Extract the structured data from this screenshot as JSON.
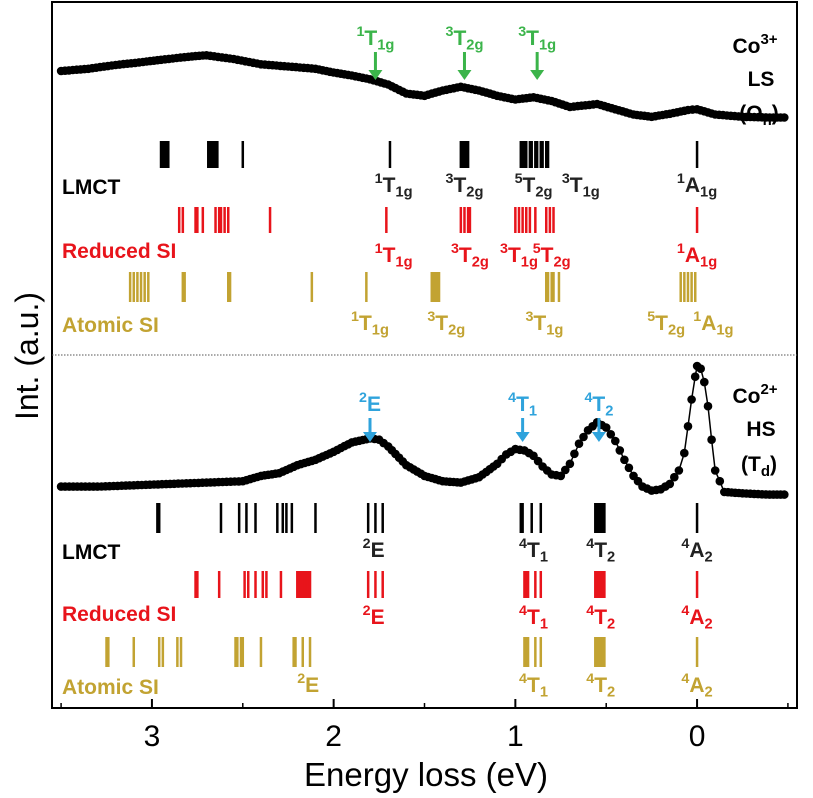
{
  "chart_data": {
    "type": "scatter",
    "xlabel": "Energy loss (eV)",
    "ylabel": "Int. (a.u.)",
    "xlim": [
      3.55,
      -0.55
    ],
    "x_ticks": [
      3,
      2,
      1,
      0
    ],
    "x_tick_labels": [
      "3",
      "2",
      "1",
      "0"
    ],
    "colors": {
      "LMCT": "#000000",
      "Reduced SI": "#e8141b",
      "Atomic SI": "#c2a332",
      "arrow_top": "#3bb44a",
      "arrow_bottom": "#2fa3dc",
      "spectrum": "#000000"
    },
    "panels": [
      {
        "id": "top",
        "label_lines": [
          "Co3+",
          "LS",
          "(Oh)"
        ],
        "label_parts": {
          "ion": "Co",
          "charge": "3+",
          "spin": "LS",
          "symmetry_open": "(O",
          "symmetry_sub": "h",
          "symmetry_close": ")"
        },
        "spectrum": {
          "x": [
            3.5,
            3.35,
            3.2,
            3.05,
            2.95,
            2.8,
            2.7,
            2.55,
            2.4,
            2.25,
            2.1,
            2.0,
            1.9,
            1.8,
            1.7,
            1.6,
            1.5,
            1.4,
            1.3,
            1.2,
            1.1,
            1.0,
            0.9,
            0.8,
            0.7,
            0.55,
            0.45,
            0.35,
            0.25,
            0.15,
            0.05,
            0.0,
            -0.1,
            -0.25,
            -0.4,
            -0.5
          ],
          "y": [
            0.88,
            0.91,
            0.96,
            1.0,
            1.03,
            1.07,
            1.09,
            1.04,
            0.97,
            0.94,
            0.91,
            0.86,
            0.82,
            0.77,
            0.7,
            0.58,
            0.55,
            0.62,
            0.67,
            0.62,
            0.55,
            0.5,
            0.53,
            0.48,
            0.4,
            0.44,
            0.37,
            0.3,
            0.27,
            0.31,
            0.36,
            0.37,
            0.3,
            0.27,
            0.26,
            0.26
          ]
        },
        "arrows": [
          {
            "x": 1.77,
            "label": "1T1g"
          },
          {
            "x": 1.28,
            "label": "3T2g"
          },
          {
            "x": 0.88,
            "label": "3T1g"
          }
        ],
        "rows": [
          {
            "name": "LMCT",
            "sticks": [
              2.95,
              2.94,
              2.93,
              2.92,
              2.91,
              2.69,
              2.68,
              2.67,
              2.66,
              2.65,
              2.64,
              2.5,
              1.69,
              1.3,
              1.29,
              1.28,
              1.27,
              1.26,
              0.97,
              0.96,
              0.95,
              0.94,
              0.92,
              0.91,
              0.89,
              0.88,
              0.86,
              0.85,
              0.83,
              0.82,
              0.0
            ],
            "labels": [
              {
                "x": 1.67,
                "text": "1T1g"
              },
              {
                "x": 1.28,
                "text": "3T2g"
              },
              {
                "x": 0.9,
                "text": "5T2g"
              },
              {
                "x": 0.64,
                "text": "3T1g"
              },
              {
                "x": 0.0,
                "text": "1A1g"
              }
            ]
          },
          {
            "name": "Reduced SI",
            "sticks": [
              2.85,
              2.83,
              2.76,
              2.75,
              2.72,
              2.65,
              2.63,
              2.62,
              2.6,
              2.58,
              2.35,
              1.71,
              1.3,
              1.28,
              1.26,
              1.25,
              1.0,
              0.98,
              0.96,
              0.94,
              0.92,
              0.89,
              0.83,
              0.81,
              0.79,
              0.0
            ],
            "labels": [
              {
                "x": 1.67,
                "text": "1T1g"
              },
              {
                "x": 1.25,
                "text": "3T2g"
              },
              {
                "x": 0.98,
                "text": "3T1g"
              },
              {
                "x": 0.8,
                "text": "5T2g"
              },
              {
                "x": 0.0,
                "text": "1A1g"
              }
            ]
          },
          {
            "name": "Atomic SI",
            "sticks": [
              3.12,
              3.1,
              3.08,
              3.06,
              3.04,
              3.02,
              2.83,
              2.82,
              2.58,
              2.57,
              2.12,
              1.82,
              1.46,
              1.45,
              1.44,
              1.43,
              1.42,
              0.83,
              0.82,
              0.8,
              0.79,
              0.76,
              0.09,
              0.07,
              0.05,
              0.03,
              0.01
            ],
            "labels": [
              {
                "x": 1.8,
                "text": "1T1g"
              },
              {
                "x": 1.38,
                "text": "3T2g"
              },
              {
                "x": 0.84,
                "text": "3T1g"
              },
              {
                "x": 0.17,
                "text": "5T2g"
              },
              {
                "x": -0.09,
                "text": "1A1g"
              }
            ]
          }
        ]
      },
      {
        "id": "bottom",
        "label_lines": [
          "Co2+",
          "HS",
          "(Td)"
        ],
        "label_parts": {
          "ion": "Co",
          "charge": "2+",
          "spin": "HS",
          "symmetry_open": "(T",
          "symmetry_sub": "d",
          "symmetry_close": ")"
        },
        "spectrum": {
          "x": [
            3.5,
            3.3,
            3.1,
            2.9,
            2.7,
            2.5,
            2.4,
            2.3,
            2.2,
            2.1,
            2.0,
            1.9,
            1.8,
            1.75,
            1.7,
            1.6,
            1.5,
            1.4,
            1.3,
            1.2,
            1.1,
            1.05,
            1.0,
            0.95,
            0.9,
            0.85,
            0.8,
            0.75,
            0.7,
            0.65,
            0.6,
            0.55,
            0.5,
            0.45,
            0.4,
            0.35,
            0.3,
            0.25,
            0.2,
            0.15,
            0.1,
            0.07,
            0.05,
            0.03,
            0.01,
            0.0,
            -0.02,
            -0.04,
            -0.06,
            -0.08,
            -0.1,
            -0.15,
            -0.25,
            -0.4,
            -0.5
          ],
          "y": [
            0.1,
            0.1,
            0.11,
            0.12,
            0.13,
            0.14,
            0.18,
            0.2,
            0.26,
            0.3,
            0.36,
            0.43,
            0.46,
            0.45,
            0.4,
            0.26,
            0.18,
            0.14,
            0.13,
            0.17,
            0.27,
            0.34,
            0.38,
            0.37,
            0.33,
            0.25,
            0.19,
            0.18,
            0.27,
            0.42,
            0.52,
            0.58,
            0.54,
            0.44,
            0.3,
            0.18,
            0.1,
            0.07,
            0.08,
            0.12,
            0.22,
            0.35,
            0.55,
            0.75,
            0.92,
            1.0,
            0.98,
            0.88,
            0.7,
            0.45,
            0.22,
            0.06,
            0.05,
            0.04,
            0.04
          ]
        },
        "arrows": [
          {
            "x": 1.8,
            "label": "2E"
          },
          {
            "x": 0.96,
            "label": "4T1"
          },
          {
            "x": 0.54,
            "label": "4T2"
          }
        ],
        "rows": [
          {
            "name": "LMCT",
            "sticks": [
              2.97,
              2.96,
              2.62,
              2.52,
              2.48,
              2.43,
              2.31,
              2.28,
              2.26,
              2.23,
              2.1,
              1.81,
              1.77,
              1.73,
              0.97,
              0.96,
              0.91,
              0.86,
              0.56,
              0.55,
              0.54,
              0.53,
              0.52,
              0.51,
              0.0
            ],
            "labels": [
              {
                "x": 1.78,
                "text": "2E"
              },
              {
                "x": 0.9,
                "text": "4T1"
              },
              {
                "x": 0.53,
                "text": "4T2"
              },
              {
                "x": 0.0,
                "text": "4A2"
              }
            ]
          },
          {
            "name": "Reduced SI",
            "sticks": [
              2.76,
              2.75,
              2.63,
              2.49,
              2.47,
              2.43,
              2.39,
              2.37,
              2.29,
              2.2,
              2.19,
              2.18,
              2.17,
              2.16,
              2.15,
              2.14,
              2.13,
              1.81,
              1.77,
              1.73,
              0.95,
              0.94,
              0.93,
              0.89,
              0.86,
              0.56,
              0.55,
              0.54,
              0.53,
              0.52,
              0.51,
              0.0
            ],
            "labels": [
              {
                "x": 1.78,
                "text": "2E"
              },
              {
                "x": 0.9,
                "text": "4T1"
              },
              {
                "x": 0.53,
                "text": "4T2"
              },
              {
                "x": 0.0,
                "text": "4A2"
              }
            ]
          },
          {
            "name": "Atomic SI",
            "sticks": [
              3.25,
              3.24,
              3.1,
              2.96,
              2.94,
              2.86,
              2.84,
              2.54,
              2.53,
              2.51,
              2.5,
              2.4,
              2.22,
              2.21,
              2.17,
              2.13,
              0.95,
              0.94,
              0.93,
              0.89,
              0.86,
              0.56,
              0.55,
              0.54,
              0.53,
              0.52,
              0.51,
              0.0
            ],
            "labels": [
              {
                "x": 2.14,
                "text": "2E"
              },
              {
                "x": 0.9,
                "text": "4T1"
              },
              {
                "x": 0.53,
                "text": "4T2"
              },
              {
                "x": 0.0,
                "text": "4A2"
              }
            ]
          }
        ]
      }
    ]
  }
}
